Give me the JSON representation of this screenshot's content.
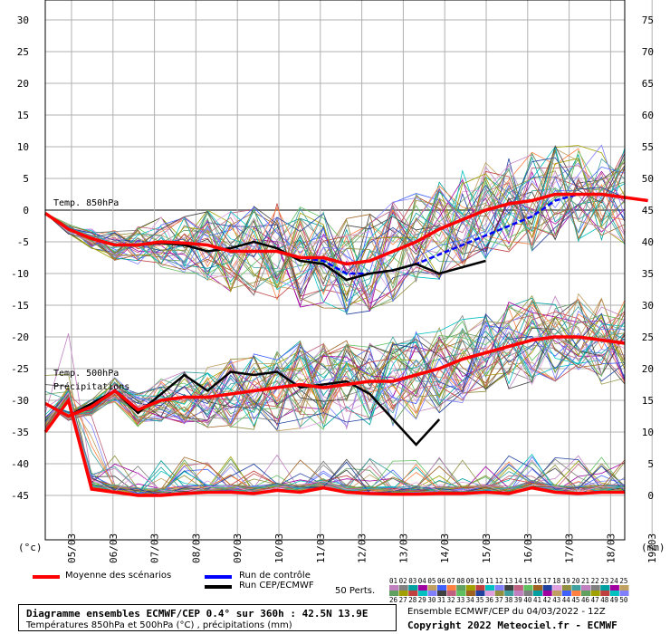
{
  "chart_data": {
    "type": "line",
    "left_axis_label": "(°c)",
    "right_axis_label": "(mm)",
    "left_ticks": [
      30,
      25,
      20,
      15,
      10,
      5,
      0,
      -5,
      -10,
      -15,
      -20,
      -25,
      -30,
      -35,
      -40,
      -45
    ],
    "right_ticks": [
      75,
      70,
      65,
      60,
      55,
      50,
      45,
      40,
      35,
      30,
      25,
      20,
      15,
      10,
      5,
      0
    ],
    "x_dates": [
      "05/03",
      "06/03",
      "07/03",
      "08/03",
      "09/03",
      "10/03",
      "11/03",
      "12/03",
      "13/03",
      "14/03",
      "15/03",
      "16/03",
      "17/03",
      "18/03",
      "19/03"
    ],
    "annotations": {
      "t850": "Temp. 850hPa",
      "t500": "Temp. 500hPa",
      "precip": "Précipitations"
    },
    "t850_mean": [
      -0.5,
      -3,
      -4.5,
      -5.5,
      -5.5,
      -5,
      -5.2,
      -5.5,
      -6.5,
      -6.5,
      -6.5,
      -7.5,
      -7.5,
      -8.5,
      -8,
      -6.5,
      -5,
      -3,
      -1.5,
      0,
      1,
      1.5,
      2.5,
      2.5,
      2.5,
      2,
      1.5
    ],
    "t850_control": [
      -0.5,
      -3,
      -4.5,
      -5.5,
      -5.5,
      -5,
      -5.2,
      -5.5,
      -6.5,
      -6.5,
      -6.5,
      -7.5,
      -8,
      -10,
      -10,
      -9.5,
      -8.5,
      -7,
      -5.5,
      -4,
      -2.5,
      -1,
      1.5,
      2.5,
      2.5,
      2,
      1.5
    ],
    "t850_operational": [
      -0.5,
      -3,
      -4.5,
      -5.5,
      -5.5,
      -5.2,
      -5.5,
      -6.5,
      -6,
      -5,
      -6,
      -8,
      -8.5,
      -11,
      -10,
      -9.5,
      -8.5,
      -10,
      -9,
      -8
    ],
    "t500_mean": [
      -30.5,
      -32.5,
      -31,
      -28.5,
      -31.5,
      -30,
      -29.5,
      -29.5,
      -29,
      -28.5,
      -28,
      -27.5,
      -28,
      -27.5,
      -27,
      -27,
      -26,
      -25,
      -23.5,
      -22.5,
      -21.5,
      -20.5,
      -20,
      -20,
      -20.5,
      -21
    ],
    "t500_operational": [
      -30.5,
      -32.5,
      -30.5,
      -28.5,
      -32,
      -29,
      -26,
      -28.5,
      -25.5,
      -26,
      -25.5,
      -28,
      -27.5,
      -27,
      -29,
      -33,
      -37,
      -33
    ],
    "precip_mean": [
      10,
      15,
      1,
      0.5,
      0,
      0,
      0.3,
      0.5,
      0.5,
      0.3,
      0.8,
      0.5,
      1.2,
      0.5,
      0.3,
      0.2,
      0.2,
      0.3,
      0.3,
      0.5,
      0.3,
      1.2,
      0.5,
      0.3,
      0.5,
      0.5
    ],
    "legend": {
      "mean": "Moyenne des scénarios",
      "control": "Run de contrôle",
      "operational": "Run CEP/ECMWF",
      "perts": "50 Perts."
    },
    "colors": {
      "mean": "#ff0000",
      "control": "#0000ff",
      "operational": "#000000",
      "grid": "#b0b0b0"
    },
    "pert_numbers": [
      "01",
      "02",
      "03",
      "04",
      "05",
      "06",
      "07",
      "08",
      "09",
      "10",
      "11",
      "12",
      "13",
      "14",
      "15",
      "16",
      "17",
      "18",
      "19",
      "20",
      "21",
      "22",
      "23",
      "24",
      "25",
      "26",
      "27",
      "28",
      "29",
      "30",
      "31",
      "32",
      "33",
      "34",
      "35",
      "36",
      "37",
      "38",
      "39",
      "40",
      "41",
      "42",
      "43",
      "44",
      "45",
      "46",
      "47",
      "48",
      "49",
      "50"
    ]
  },
  "info": {
    "title": "Diagramme ensembles ECMWF/CEP 0.4° sur 360h : 42.5N 13.9E",
    "subtitle": "Températures 850hPa et 500hPa (°C) , précipitations (mm)",
    "run": "Ensemble ECMWF/CEP du 04/03/2022 - 12Z",
    "copyright": "Copyright 2022 Meteociel.fr - ECMWF"
  }
}
